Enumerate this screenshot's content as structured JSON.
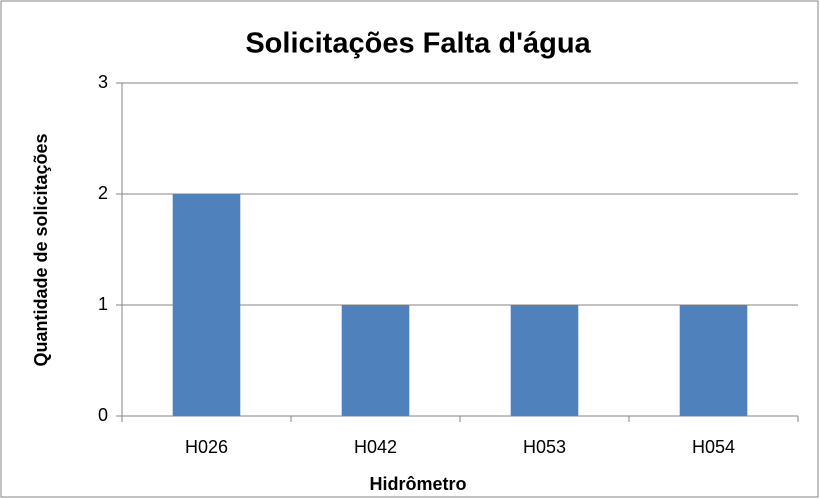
{
  "chart_data": {
    "type": "bar",
    "title": "Solicitações Falta d'água",
    "x_label": "Hidrômetro",
    "y_label": "Quantidade de solicitações",
    "categories": [
      "H026",
      "H042",
      "H053",
      "H054"
    ],
    "values": [
      2,
      1,
      1,
      1
    ],
    "color": "#4f81bd",
    "ylim": [
      0,
      3
    ],
    "yticks": [
      0,
      1,
      2,
      3
    ],
    "grid": true
  }
}
